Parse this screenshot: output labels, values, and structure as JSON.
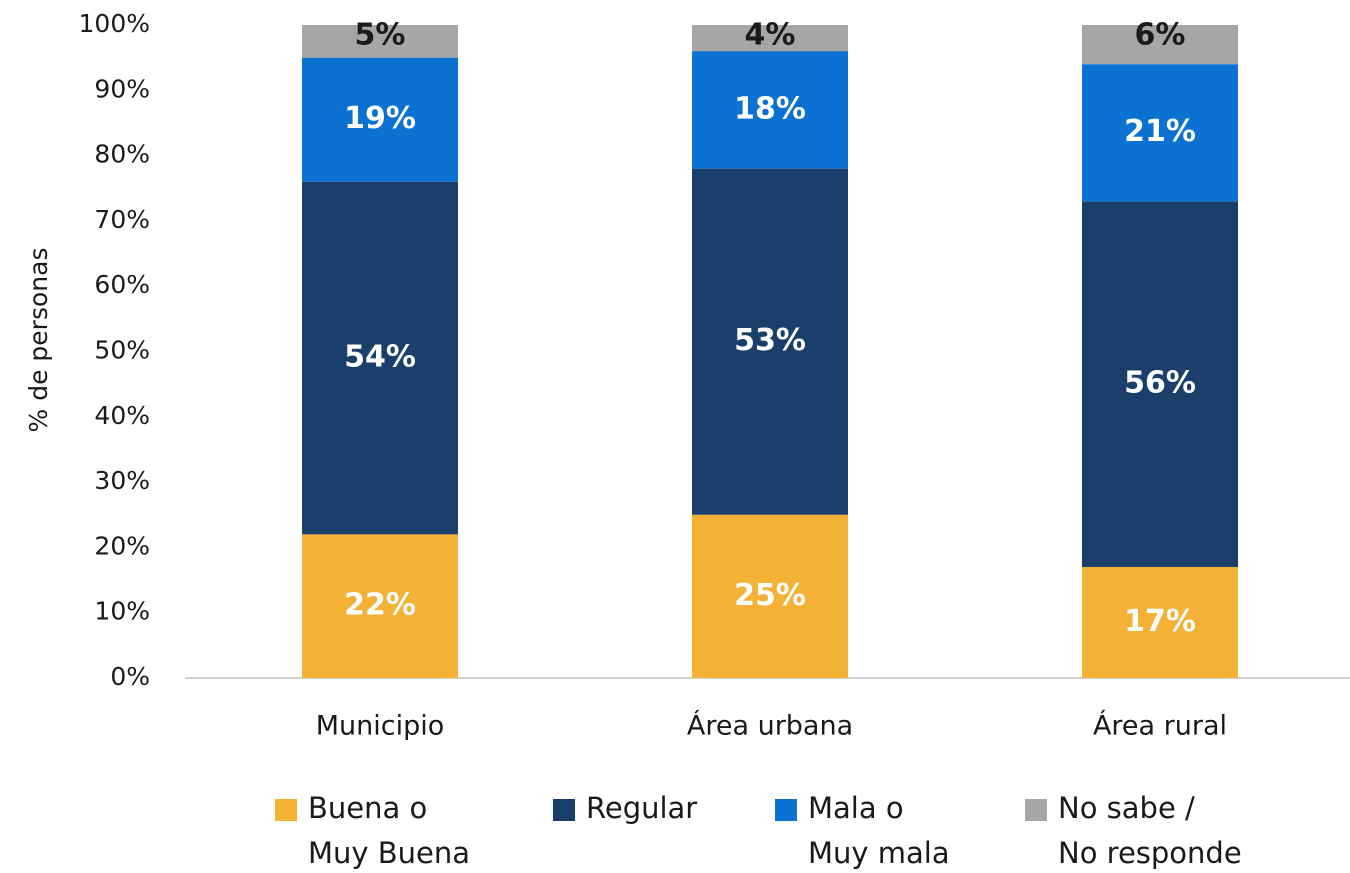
{
  "chart_data": {
    "type": "stacked_bar",
    "y_label": "% de personas",
    "categories": [
      "Municipio",
      "Área urbana",
      "Área rural"
    ],
    "series": [
      {
        "name": "Buena o Muy Buena",
        "color": "#f3b236",
        "values": [
          22,
          25,
          17
        ],
        "value_labels": [
          "22%",
          "25%",
          "17%"
        ]
      },
      {
        "name": "Regular",
        "color": "#1b3f6b",
        "values": [
          54,
          53,
          56
        ],
        "value_labels": [
          "54%",
          "53%",
          "56%"
        ]
      },
      {
        "name": "Mala o Muy mala",
        "color": "#0b72d1",
        "values": [
          19,
          18,
          21
        ],
        "value_labels": [
          "19%",
          "18%",
          "21%"
        ]
      },
      {
        "name": "No sabe / No responde",
        "color": "#a6a6a6",
        "values": [
          5,
          4,
          6
        ],
        "value_labels": [
          "5%",
          "4%",
          "6%"
        ]
      }
    ],
    "ylim": [
      0,
      100
    ],
    "yticks": [
      {
        "value": 0,
        "label": "0%"
      },
      {
        "value": 10,
        "label": "10%"
      },
      {
        "value": 20,
        "label": "20%"
      },
      {
        "value": 30,
        "label": "30%"
      },
      {
        "value": 40,
        "label": "40%"
      },
      {
        "value": 50,
        "label": "50%"
      },
      {
        "value": 60,
        "label": "60%"
      },
      {
        "value": 70,
        "label": "70%"
      },
      {
        "value": 80,
        "label": "80%"
      },
      {
        "value": 90,
        "label": "90%"
      },
      {
        "value": 100,
        "label": "100%"
      }
    ],
    "legend": "bottom"
  }
}
